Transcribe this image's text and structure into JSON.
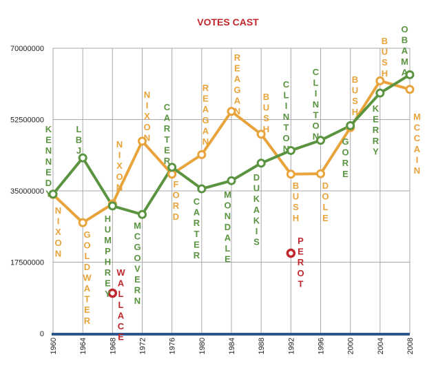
{
  "chart_data": {
    "type": "line",
    "title": "VOTES CAST",
    "xlabel": "",
    "ylabel": "",
    "x": [
      1960,
      1964,
      1968,
      1972,
      1976,
      1980,
      1984,
      1988,
      1992,
      1996,
      2000,
      2004,
      2008
    ],
    "ylim": [
      0,
      70000000
    ],
    "yticks": [
      "0",
      "17500000",
      "35000000",
      "52500000",
      "70000000"
    ],
    "xticks": [
      "1960",
      "1964",
      "1968",
      "1972",
      "1976",
      "1980",
      "1984",
      "1988",
      "1992",
      "1996",
      "2000",
      "2004",
      "2008"
    ],
    "grid": true,
    "legend": "none",
    "colors": {
      "democrat": "#5a9441",
      "republican": "#e8a33b",
      "third_party": "#c0272d",
      "axis": "#2e5590",
      "grid": "#a8a8a8"
    },
    "series": [
      {
        "color": "#5a9441",
        "values": [
          34200000,
          43100000,
          31300000,
          29200000,
          40800000,
          35500000,
          37500000,
          41800000,
          44900000,
          47400000,
          51000000,
          59000000,
          63500000
        ],
        "candidates": [
          "KENNEDY",
          "LBJ",
          "HUMPHREY",
          "MCGOVERN",
          "CARTER",
          "CARTER",
          "MONDALE",
          "DUKAKIS",
          "CLINTON",
          "CLINTON",
          "GORE",
          "KERRY",
          "OBAMA"
        ]
      },
      {
        "color": "#e8a33b",
        "values": [
          34100000,
          27200000,
          31800000,
          47200000,
          39100000,
          43900000,
          54500000,
          48900000,
          39100000,
          39200000,
          50500000,
          62000000,
          59900000
        ],
        "candidates": [
          "NIXON",
          "GOLDWATER",
          "NIXON",
          "NIXON",
          "FORD",
          "REAGAN",
          "REAGAN",
          "BUSH",
          "BUSH",
          "DOLE",
          "BUSH",
          "BUSH",
          "MCCAIN"
        ]
      }
    ],
    "third_party": [
      {
        "x": 1968,
        "value": 9900000,
        "candidate": "WALLACE",
        "color": "#c0272d"
      },
      {
        "x": 1992,
        "value": 19700000,
        "candidate": "PEROT",
        "color": "#c0272d"
      }
    ]
  }
}
